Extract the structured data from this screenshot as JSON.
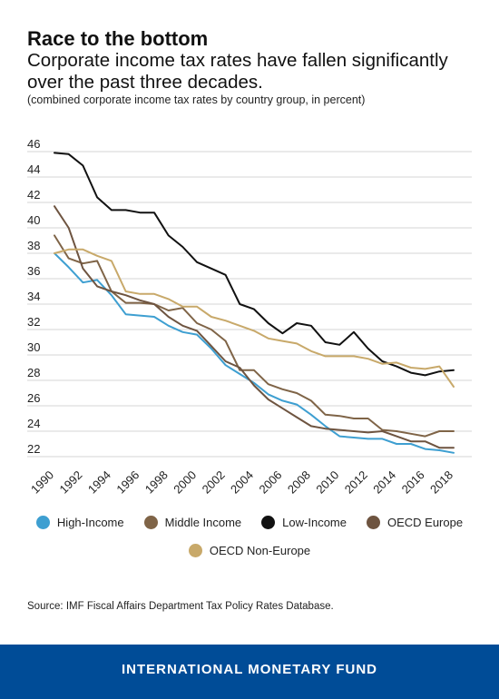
{
  "header": {
    "title": "Race to the bottom",
    "subtitle": "Corporate income tax rates have fallen significantly over the past three decades.",
    "note": "(combined corporate income tax rates by country group, in percent)"
  },
  "source": "Source: IMF Fiscal Affairs Department Tax Policy Rates Database.",
  "footer": {
    "label": "INTERNATIONAL MONETARY FUND",
    "color": "#004c97"
  },
  "chart_data": {
    "type": "line",
    "title": "Race to the bottom",
    "x": [
      1990,
      1991,
      1992,
      1993,
      1994,
      1995,
      1996,
      1997,
      1998,
      1999,
      2000,
      2001,
      2002,
      2003,
      2004,
      2005,
      2006,
      2007,
      2008,
      2009,
      2010,
      2011,
      2012,
      2013,
      2014,
      2015,
      2016,
      2017,
      2018
    ],
    "xticks": [
      "1990",
      "1992",
      "1994",
      "1996",
      "1998",
      "2000",
      "2002",
      "2004",
      "2006",
      "2008",
      "2010",
      "2012",
      "2014",
      "2016",
      "2018"
    ],
    "yticks": [
      22,
      24,
      26,
      28,
      30,
      32,
      34,
      36,
      38,
      40,
      42,
      44,
      46
    ],
    "ylim": [
      21.5,
      46.5
    ],
    "xlim": [
      1990,
      2018
    ],
    "grid": "horizontal",
    "legend_position": "bottom",
    "series": [
      {
        "name": "High-Income",
        "color": "#3e9fd1",
        "values": [
          38.0,
          36.9,
          35.7,
          35.9,
          34.7,
          33.2,
          33.1,
          33.0,
          32.3,
          31.8,
          31.6,
          30.5,
          29.2,
          28.5,
          27.8,
          26.9,
          26.4,
          26.1,
          25.3,
          24.4,
          23.6,
          23.5,
          23.4,
          23.4,
          23.0,
          23.0,
          22.6,
          22.5,
          22.3
        ]
      },
      {
        "name": "Middle Income",
        "color": "#7f6447",
        "values": [
          39.4,
          37.6,
          37.2,
          37.4,
          35.0,
          34.1,
          34.1,
          34.0,
          33.5,
          33.7,
          32.5,
          32.0,
          31.1,
          28.8,
          28.8,
          27.7,
          27.3,
          27.0,
          26.4,
          25.3,
          25.2,
          25.0,
          25.0,
          24.1,
          24.0,
          23.8,
          23.6,
          24.0,
          24.0
        ]
      },
      {
        "name": "Low-Income",
        "color": "#111111",
        "values": [
          45.9,
          45.8,
          44.9,
          42.4,
          41.4,
          41.4,
          41.2,
          41.2,
          39.4,
          38.5,
          37.3,
          36.8,
          36.3,
          34.0,
          33.6,
          32.5,
          31.7,
          32.5,
          32.3,
          31.0,
          30.8,
          31.8,
          30.5,
          29.5,
          29.1,
          28.6,
          28.4,
          28.7,
          28.8
        ]
      },
      {
        "name": "OECD Europe",
        "color": "#6e5440",
        "values": [
          41.7,
          40.0,
          36.8,
          35.4,
          35.0,
          34.7,
          34.3,
          34.0,
          33.0,
          32.3,
          31.9,
          30.7,
          29.5,
          29.0,
          27.6,
          26.5,
          25.8,
          25.1,
          24.4,
          24.2,
          24.1,
          24.0,
          23.9,
          24.0,
          23.6,
          23.2,
          23.2,
          22.7,
          22.7
        ]
      },
      {
        "name": "OECD Non-Europe",
        "color": "#c8a96a",
        "values": [
          38.0,
          38.3,
          38.3,
          37.8,
          37.4,
          35.0,
          34.8,
          34.8,
          34.4,
          33.8,
          33.8,
          33.0,
          32.7,
          32.3,
          31.9,
          31.3,
          31.1,
          30.9,
          30.3,
          29.9,
          29.9,
          29.9,
          29.7,
          29.3,
          29.4,
          29.0,
          28.9,
          29.1,
          27.5
        ]
      }
    ]
  },
  "legend": {
    "rows": [
      [
        "High-Income",
        "Middle Income",
        "Low-Income",
        "OECD Europe"
      ],
      [
        "OECD Non-Europe"
      ]
    ]
  }
}
